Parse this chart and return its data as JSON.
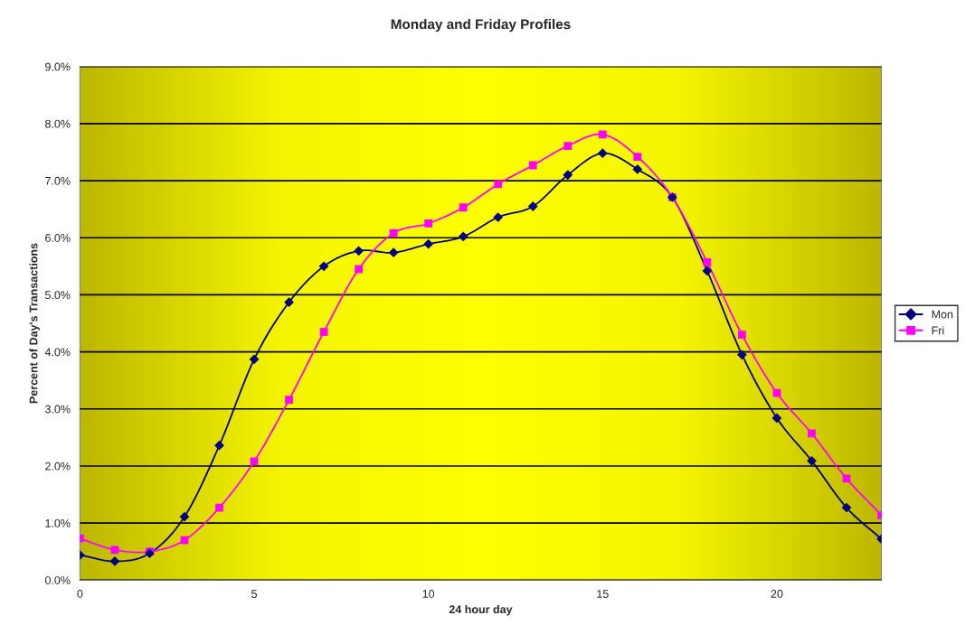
{
  "chart_data": {
    "type": "line",
    "title": "Monday and Friday Profiles",
    "xlabel": "24 hour day",
    "ylabel": "Percent of Day's Transactions",
    "x": [
      0,
      1,
      2,
      3,
      4,
      5,
      6,
      7,
      8,
      9,
      10,
      11,
      12,
      13,
      14,
      15,
      16,
      17,
      18,
      19,
      20,
      21,
      22,
      23
    ],
    "series": [
      {
        "name": "Mon",
        "color": "#000080",
        "marker": "diamond",
        "values": [
          0.44,
          0.33,
          0.47,
          1.11,
          2.36,
          3.87,
          4.87,
          5.5,
          5.77,
          5.74,
          5.89,
          6.02,
          6.36,
          6.55,
          7.1,
          7.48,
          7.2,
          6.71,
          5.42,
          3.95,
          2.84,
          2.09,
          1.27,
          0.72
        ]
      },
      {
        "name": "Fri",
        "color": "#ff00ff",
        "marker": "square",
        "values": [
          0.73,
          0.53,
          0.5,
          0.7,
          1.27,
          2.08,
          3.16,
          4.35,
          5.45,
          6.08,
          6.25,
          6.53,
          6.94,
          7.27,
          7.61,
          7.81,
          7.42,
          6.71,
          5.57,
          4.3,
          3.28,
          2.57,
          1.78,
          1.14
        ]
      }
    ],
    "xlim": [
      0,
      23
    ],
    "xticks": [
      0,
      5,
      10,
      15,
      20
    ],
    "ylim": [
      0,
      9
    ],
    "yticks": [
      {
        "value": 0,
        "label": "0.0%"
      },
      {
        "value": 1,
        "label": "1.0%"
      },
      {
        "value": 2,
        "label": "2.0%"
      },
      {
        "value": 3,
        "label": "3.0%"
      },
      {
        "value": 4,
        "label": "4.0%"
      },
      {
        "value": 5,
        "label": "5.0%"
      },
      {
        "value": 6,
        "label": "6.0%"
      },
      {
        "value": 7,
        "label": "7.0%"
      },
      {
        "value": 8,
        "label": "8.0%"
      },
      {
        "value": 9,
        "label": "9.0%"
      }
    ],
    "grid": "y",
    "legend": "right",
    "line_style": "solid"
  }
}
